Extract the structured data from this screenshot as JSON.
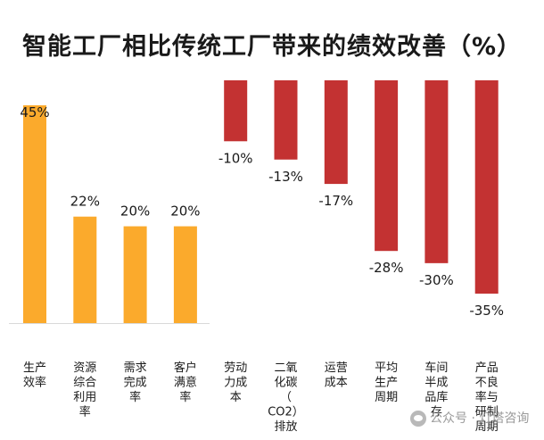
{
  "chart_data": {
    "type": "bar",
    "title": "智能工厂相比传统工厂带来的绩效改善（%）",
    "xlabel": "",
    "ylabel": "",
    "ylim": [
      -35,
      45
    ],
    "grid": false,
    "categories": [
      [
        "生产",
        "效率"
      ],
      [
        "资源",
        "综合",
        "利用",
        "率"
      ],
      [
        "需求",
        "完成",
        "率"
      ],
      [
        "客户",
        "满意",
        "率"
      ],
      [
        "劳动",
        "力成",
        "本"
      ],
      [
        "二氧",
        "化碳",
        "（",
        "CO2）",
        "排放"
      ],
      [
        "运营",
        "成本"
      ],
      [
        "平均",
        "生产",
        "周期"
      ],
      [
        "车间",
        "半成",
        "品库",
        "存"
      ],
      [
        "产品",
        "不良",
        "率与",
        "研制",
        "周期"
      ]
    ],
    "values": [
      45,
      22,
      20,
      20,
      -10,
      -13,
      -17,
      -28,
      -30,
      -35
    ],
    "value_labels": [
      "45%",
      "22%",
      "20%",
      "20%",
      "-10%",
      "-13%",
      "-17%",
      "-28%",
      "-30%",
      "-35%"
    ],
    "colors": {
      "positive": "#FBAA2C",
      "negative": "#C33232"
    }
  },
  "watermark": {
    "text": "公众号 · 灯塔咨询"
  }
}
